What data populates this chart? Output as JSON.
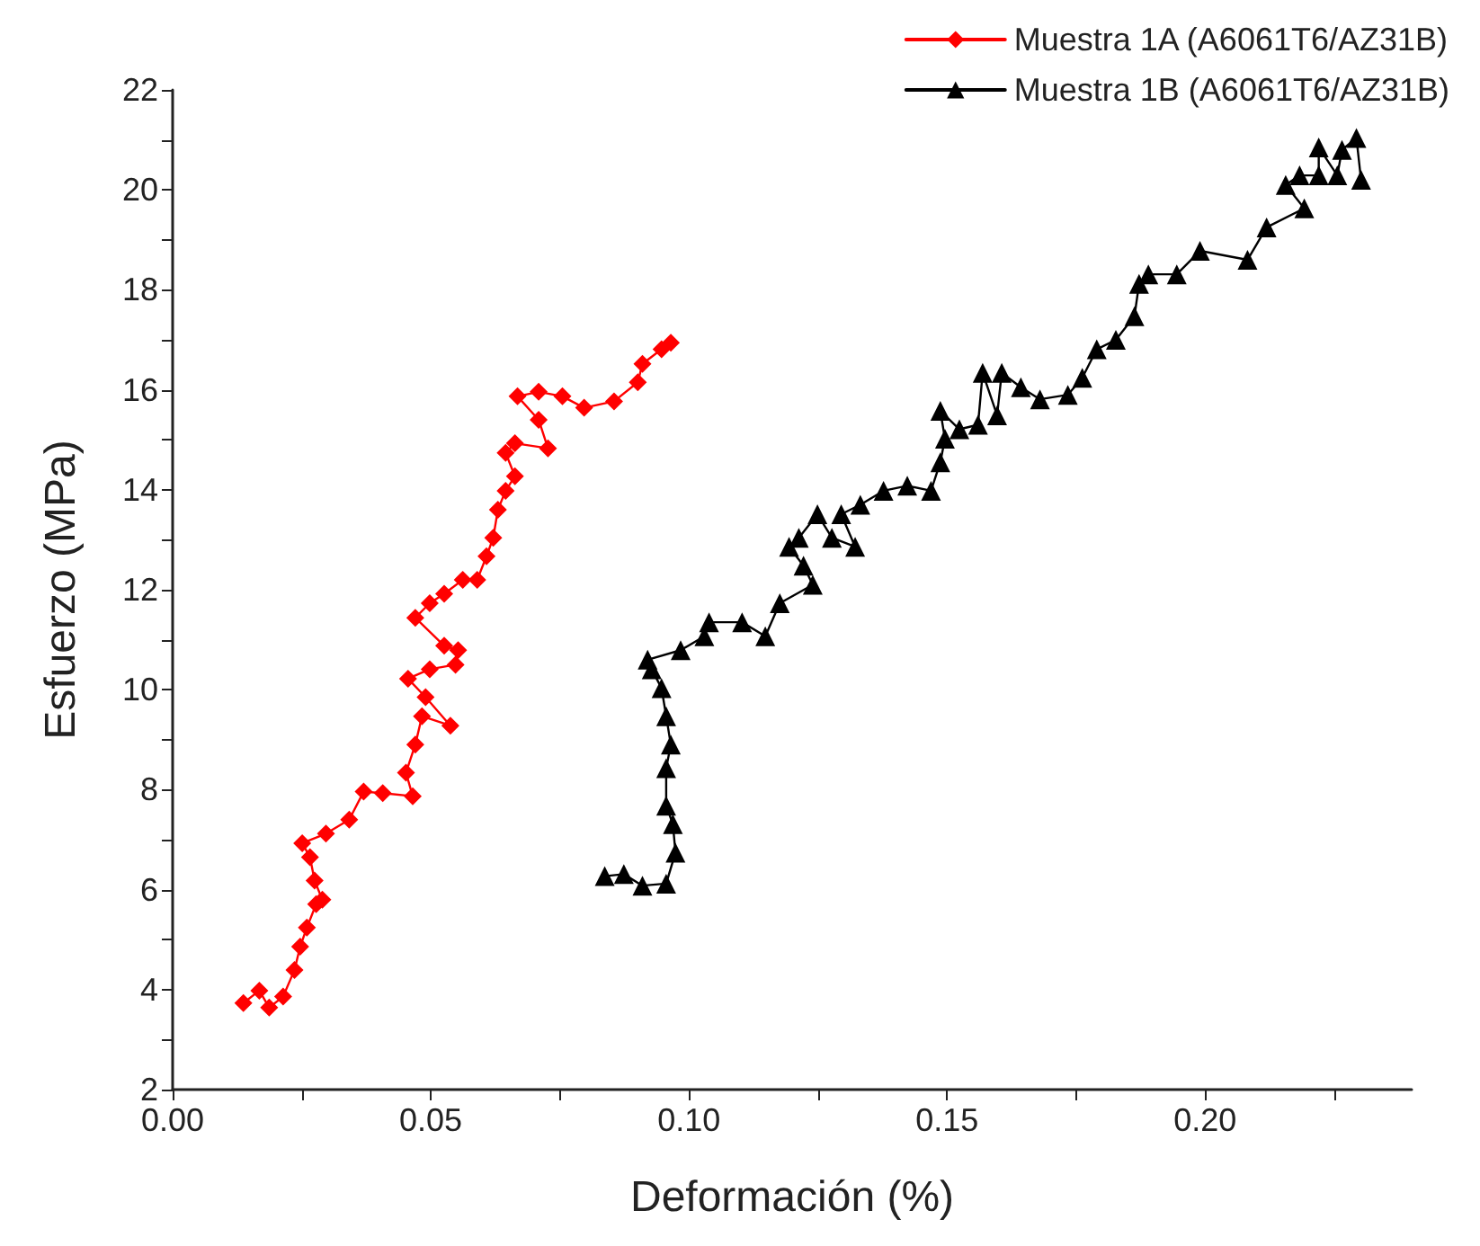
{
  "chart_data": {
    "type": "line",
    "xlabel": "Deformación (%)",
    "ylabel": "Esfuerzo (MPa)",
    "xlim": [
      0,
      0.24
    ],
    "ylim": [
      2,
      22
    ],
    "xticks": [
      {
        "value": 0,
        "label": "0.00"
      },
      {
        "value": 0.025,
        "label": null
      },
      {
        "value": 0.05,
        "label": "0.05"
      },
      {
        "value": 0.075,
        "label": null
      },
      {
        "value": 0.1,
        "label": "0.10"
      },
      {
        "value": 0.125,
        "label": null
      },
      {
        "value": 0.15,
        "label": "0.15"
      },
      {
        "value": 0.175,
        "label": null
      },
      {
        "value": 0.2,
        "label": "0.20"
      },
      {
        "value": 0.225,
        "label": null
      }
    ],
    "yticks": [
      2,
      {
        "value": 3,
        "label": null
      },
      4,
      {
        "value": 5,
        "label": null
      },
      6,
      {
        "value": 7,
        "label": null
      },
      8,
      {
        "value": 9,
        "label": null
      },
      10,
      {
        "value": 11,
        "label": null
      },
      12,
      {
        "value": 13,
        "label": null
      },
      14,
      {
        "value": 15,
        "label": null
      },
      16,
      {
        "value": 17,
        "label": null
      },
      18,
      {
        "value": 19,
        "label": null
      },
      20,
      {
        "value": 21,
        "label": null
      },
      22
    ],
    "grid": false,
    "legend": "top right",
    "line_style": "solid",
    "series": [
      {
        "name": "Muestra 1A (A6061T6/AZ31B)",
        "color": "#ff0000",
        "marker": "diamond",
        "x": [
          0.0137,
          0.0168,
          0.0187,
          0.0214,
          0.0236,
          0.0247,
          0.026,
          0.0278,
          0.029,
          0.0275,
          0.0266,
          0.0251,
          0.0297,
          0.0342,
          0.037,
          0.0407,
          0.0465,
          0.0452,
          0.047,
          0.0483,
          0.0538,
          0.049,
          0.0456,
          0.0498,
          0.0548,
          0.0553,
          0.0526,
          0.047,
          0.0498,
          0.0526,
          0.0562,
          0.059,
          0.0608,
          0.0621,
          0.063,
          0.0645,
          0.0663,
          0.0645,
          0.0663,
          0.0727,
          0.0709,
          0.0668,
          0.0709,
          0.0755,
          0.0797,
          0.0855,
          0.0901,
          0.091,
          0.0947,
          0.0965
        ],
        "values": [
          3.73,
          3.98,
          3.64,
          3.86,
          4.39,
          4.86,
          5.24,
          5.71,
          5.8,
          6.18,
          6.65,
          6.93,
          7.12,
          7.4,
          7.96,
          7.93,
          7.87,
          8.34,
          8.9,
          9.47,
          9.28,
          9.85,
          10.22,
          10.41,
          10.5,
          10.79,
          10.88,
          11.44,
          11.73,
          11.92,
          12.2,
          12.2,
          12.67,
          13.04,
          13.6,
          13.98,
          14.27,
          14.74,
          14.93,
          14.83,
          15.4,
          15.87,
          15.96,
          15.87,
          15.64,
          15.77,
          16.15,
          16.52,
          16.81,
          16.94
        ]
      },
      {
        "name": "Muestra 1B (A6061T6/AZ31B)",
        "color": "#000000",
        "marker": "triangle",
        "x": [
          0.0837,
          0.0874,
          0.091,
          0.0956,
          0.0974,
          0.0969,
          0.0956,
          0.0956,
          0.0965,
          0.0956,
          0.0947,
          0.0928,
          0.092,
          0.0984,
          0.103,
          0.1039,
          0.1103,
          0.1148,
          0.1176,
          0.124,
          0.1222,
          0.1194,
          0.1213,
          0.1249,
          0.1277,
          0.1322,
          0.1295,
          0.1332,
          0.1377,
          0.1423,
          0.1469,
          0.1487,
          0.1496,
          0.1487,
          0.1524,
          0.156,
          0.1569,
          0.1597,
          0.1606,
          0.1643,
          0.168,
          0.1734,
          0.1762,
          0.179,
          0.1827,
          0.1863,
          0.1872,
          0.189,
          0.1945,
          0.199,
          0.2082,
          0.2119,
          0.2192,
          0.2156,
          0.2183,
          0.222,
          0.222,
          0.2256,
          0.2265,
          0.2293,
          0.2302
        ],
        "values": [
          6.27,
          6.31,
          6.08,
          6.12,
          6.74,
          7.31,
          7.68,
          8.43,
          8.9,
          9.47,
          10.03,
          10.41,
          10.6,
          10.79,
          11.07,
          11.35,
          11.35,
          11.07,
          11.73,
          12.1,
          12.48,
          12.86,
          13.04,
          13.51,
          13.04,
          12.86,
          13.51,
          13.7,
          13.98,
          14.08,
          13.98,
          14.55,
          15.02,
          15.58,
          15.21,
          15.3,
          16.34,
          15.49,
          16.34,
          16.05,
          15.81,
          15.9,
          16.24,
          16.81,
          17.0,
          17.47,
          18.12,
          18.31,
          18.31,
          18.78,
          18.6,
          19.25,
          19.63,
          20.1,
          20.29,
          20.29,
          20.85,
          20.29,
          20.8,
          21.04,
          20.2
        ]
      }
    ]
  }
}
